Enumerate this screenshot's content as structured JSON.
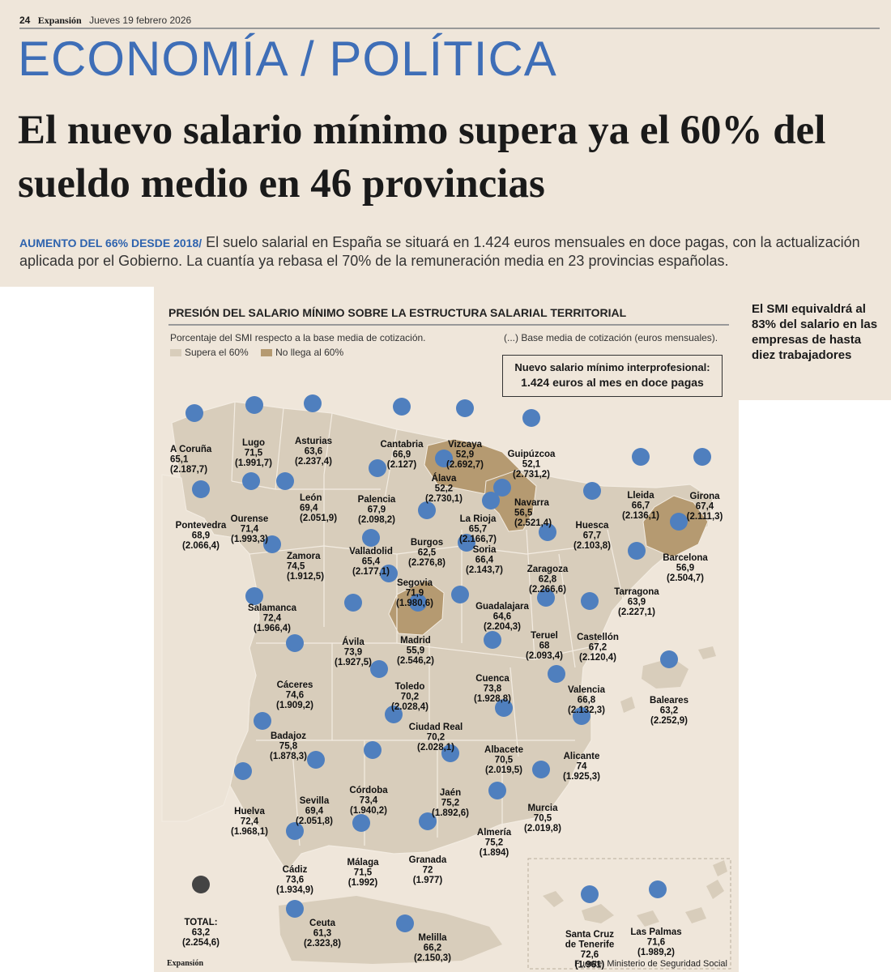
{
  "header": {
    "page_number": "24",
    "publication": "Expansión",
    "date": "Jueves 19 febrero 2026",
    "section": "ECONOMÍA / POLÍTICA"
  },
  "headline": "El nuevo salario mínimo supera ya el 60% del sueldo medio en 46 provincias",
  "deck": {
    "kicker": "AUMENTO DEL 66% DESDE 2018/",
    "text": "El suelo salarial en España se situará en 1.424 euros mensuales en doce pagas, con la actualización aplicada por el Gobierno. La cuantía ya rebasa el 70% de la remuneración media en 23 provincias españolas."
  },
  "sidebar": "El SMI equivaldrá al 83% del salario en las empresas de hasta diez trabajadores",
  "graphic": {
    "title": "PRESIÓN DEL SALARIO MÍNIMO SOBRE LA ESTRUCTURA SALARIAL TERRITORIAL",
    "subtitle": "Porcentaje del SMI respecto a la base media de cotización.",
    "paren_note": "(...)  Base media de cotización (euros mensuales).",
    "legend": [
      {
        "label": "Supera el 60%",
        "color": "#d8cdbb"
      },
      {
        "label": "No llega al 60%",
        "color": "#b59a71"
      }
    ],
    "smi_box": {
      "line1": "Nuevo salario mínimo interprofesional:",
      "line2": "1.424 euros al mes en doce pagas"
    },
    "credit": "Expansión",
    "source": "Fuente: Ministerio de Seguridad Social"
  },
  "colors": {
    "dot": "#4f7fbe",
    "total_dot": "#444444",
    "above_60": "#d8cdbb",
    "below_60": "#b59a71",
    "background": "#efe6da",
    "section_blue": "#3e6eb7"
  },
  "provinces": [
    {
      "name": "A Coruña",
      "pct": "65,1",
      "base": "(2.187,7)"
    },
    {
      "name": "Lugo",
      "pct": "71,5",
      "base": "(1.991,7)"
    },
    {
      "name": "Asturias",
      "pct": "63,6",
      "base": "(2.237,4)"
    },
    {
      "name": "Cantabria",
      "pct": "66,9",
      "base": "(2.127)"
    },
    {
      "name": "Vizcaya",
      "pct": "52,9",
      "base": "(2.692,7)"
    },
    {
      "name": "Guipúzcoa",
      "pct": "52,1",
      "base": "(2.731,2)"
    },
    {
      "name": "Álava",
      "pct": "52,2",
      "base": "(2.730,1)"
    },
    {
      "name": "Navarra",
      "pct": "56,5",
      "base": "(2.521,4)"
    },
    {
      "name": "La Rioja",
      "pct": "65,7",
      "base": "(2.166,7)"
    },
    {
      "name": "Palencia",
      "pct": "67,9",
      "base": "(2.098,2)"
    },
    {
      "name": "León",
      "pct": "69,4",
      "base": "(2.051,9)"
    },
    {
      "name": "Ourense",
      "pct": "71,4",
      "base": "(1.993,3)"
    },
    {
      "name": "Pontevedra",
      "pct": "68,9",
      "base": "(2.066,4)"
    },
    {
      "name": "Burgos",
      "pct": "62,5",
      "base": "(2.276,8)"
    },
    {
      "name": "Huesca",
      "pct": "67,7",
      "base": "(2.103,8)"
    },
    {
      "name": "Lleida",
      "pct": "66,7",
      "base": "(2.136,1)"
    },
    {
      "name": "Girona",
      "pct": "67,4",
      "base": "(2.111,3)"
    },
    {
      "name": "Barcelona",
      "pct": "56,9",
      "base": "(2.504,7)"
    },
    {
      "name": "Zamora",
      "pct": "74,5",
      "base": "(1.912,5)"
    },
    {
      "name": "Valladolid",
      "pct": "65,4",
      "base": "(2.177,1)"
    },
    {
      "name": "Soria",
      "pct": "66,4",
      "base": "(2.143,7)"
    },
    {
      "name": "Zaragoza",
      "pct": "62,8",
      "base": "(2.266,6)"
    },
    {
      "name": "Segovia",
      "pct": "71,9",
      "base": "(1.980,6)"
    },
    {
      "name": "Tarragona",
      "pct": "63,9",
      "base": "(2.227,1)"
    },
    {
      "name": "Salamanca",
      "pct": "72,4",
      "base": "(1.966,4)"
    },
    {
      "name": "Guadalajara",
      "pct": "64,6",
      "base": "(2.204,3)"
    },
    {
      "name": "Ávila",
      "pct": "73,9",
      "base": "(1.927,5)"
    },
    {
      "name": "Madrid",
      "pct": "55,9",
      "base": "(2.546,2)"
    },
    {
      "name": "Teruel",
      "pct": "68",
      "base": "(2.093,4)"
    },
    {
      "name": "Castellón",
      "pct": "67,2",
      "base": "(2.120,4)"
    },
    {
      "name": "Cáceres",
      "pct": "74,6",
      "base": "(1.909,2)"
    },
    {
      "name": "Toledo",
      "pct": "70,2",
      "base": "(2.028,4)"
    },
    {
      "name": "Cuenca",
      "pct": "73,8",
      "base": "(1.928,8)"
    },
    {
      "name": "Valencia",
      "pct": "66,8",
      "base": "(2.132,3)"
    },
    {
      "name": "Baleares",
      "pct": "63,2",
      "base": "(2.252,9)"
    },
    {
      "name": "Ciudad Real",
      "pct": "70,2",
      "base": "(2.028,1)"
    },
    {
      "name": "Badajoz",
      "pct": "75,8",
      "base": "(1.878,3)"
    },
    {
      "name": "Albacete",
      "pct": "70,5",
      "base": "(2.019,5)"
    },
    {
      "name": "Alicante",
      "pct": "74",
      "base": "(1.925,3)"
    },
    {
      "name": "Córdoba",
      "pct": "73,4",
      "base": "(1.940,2)"
    },
    {
      "name": "Jaén",
      "pct": "75,2",
      "base": "(1.892,6)"
    },
    {
      "name": "Huelva",
      "pct": "72,4",
      "base": "(1.968,1)"
    },
    {
      "name": "Sevilla",
      "pct": "69,4",
      "base": "(2.051,8)"
    },
    {
      "name": "Murcia",
      "pct": "70,5",
      "base": "(2.019,8)"
    },
    {
      "name": "Almería",
      "pct": "75,2",
      "base": "(1.894)"
    },
    {
      "name": "Cádiz",
      "pct": "73,6",
      "base": "(1.934,9)"
    },
    {
      "name": "Málaga",
      "pct": "71,5",
      "base": "(1.992)"
    },
    {
      "name": "Granada",
      "pct": "72",
      "base": "(1.977)"
    },
    {
      "name": "TOTAL:",
      "pct": "63,2",
      "base": "(2.254,6)"
    },
    {
      "name": "Ceuta",
      "pct": "61,3",
      "base": "(2.323,8)"
    },
    {
      "name": "Melilla",
      "pct": "66,2",
      "base": "(2.150,3)"
    },
    {
      "name": "Santa Cruz de Tenerife",
      "pct": "72,6",
      "base": "(1.961)"
    },
    {
      "name": "Las Palmas",
      "pct": "71,6",
      "base": "(1.989,2)"
    }
  ]
}
